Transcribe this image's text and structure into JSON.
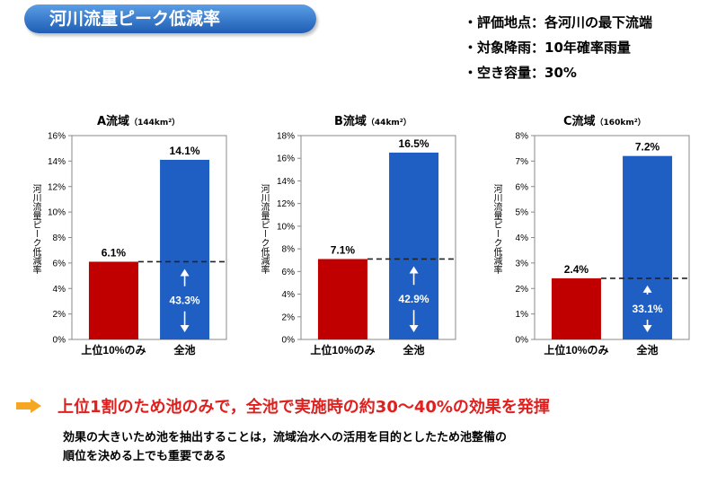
{
  "header": {
    "title": "河川流量ピーク低減率"
  },
  "conditions": [
    "・評価地点：各河川の最下流端",
    "・対象降雨：10年確率雨量",
    "・空き容量：30%"
  ],
  "chart_data": [
    {
      "type": "bar",
      "title": "A流域",
      "subtitle": "（144km²）",
      "ylabel": "河川流量ピーク低減率",
      "categories": [
        "上位10%のみ",
        "全池"
      ],
      "values": [
        6.1,
        14.1
      ],
      "value_labels": [
        "6.1%",
        "14.1%"
      ],
      "ratio_label": "43.3%",
      "ylim": [
        0,
        16
      ],
      "yticks": [
        "0%",
        "2%",
        "4%",
        "6%",
        "8%",
        "10%",
        "12%",
        "14%",
        "16%"
      ],
      "colors": [
        "#c00000",
        "#1f5fc4"
      ]
    },
    {
      "type": "bar",
      "title": "B流域",
      "subtitle": "（44km²）",
      "ylabel": "河川流量ピーク低減率",
      "categories": [
        "上位10%のみ",
        "全池"
      ],
      "values": [
        7.1,
        16.5
      ],
      "value_labels": [
        "7.1%",
        "16.5%"
      ],
      "ratio_label": "42.9%",
      "ylim": [
        0,
        18
      ],
      "yticks": [
        "0%",
        "2%",
        "4%",
        "6%",
        "8%",
        "10%",
        "12%",
        "14%",
        "16%",
        "18%"
      ],
      "colors": [
        "#c00000",
        "#1f5fc4"
      ]
    },
    {
      "type": "bar",
      "title": "C流域",
      "subtitle": "（160km²）",
      "ylabel": "河川流量ピーク低減率",
      "categories": [
        "上位10%のみ",
        "全池"
      ],
      "values": [
        2.4,
        7.2
      ],
      "value_labels": [
        "2.4%",
        "7.2%"
      ],
      "ratio_label": "33.1%",
      "ylim": [
        0,
        8
      ],
      "yticks": [
        "0%",
        "1%",
        "2%",
        "3%",
        "4%",
        "5%",
        "6%",
        "7%",
        "8%"
      ],
      "colors": [
        "#c00000",
        "#1f5fc4"
      ]
    }
  ],
  "conclusion": "上位1割のため池のみで，全池で実施時の約30～40%の効果を発揮",
  "notes": [
    "効果の大きいため池を抽出することは，流域治水への活用を目的としたため池整備の",
    "順位を決める上でも重要である"
  ],
  "accent_color": "#f5a623"
}
